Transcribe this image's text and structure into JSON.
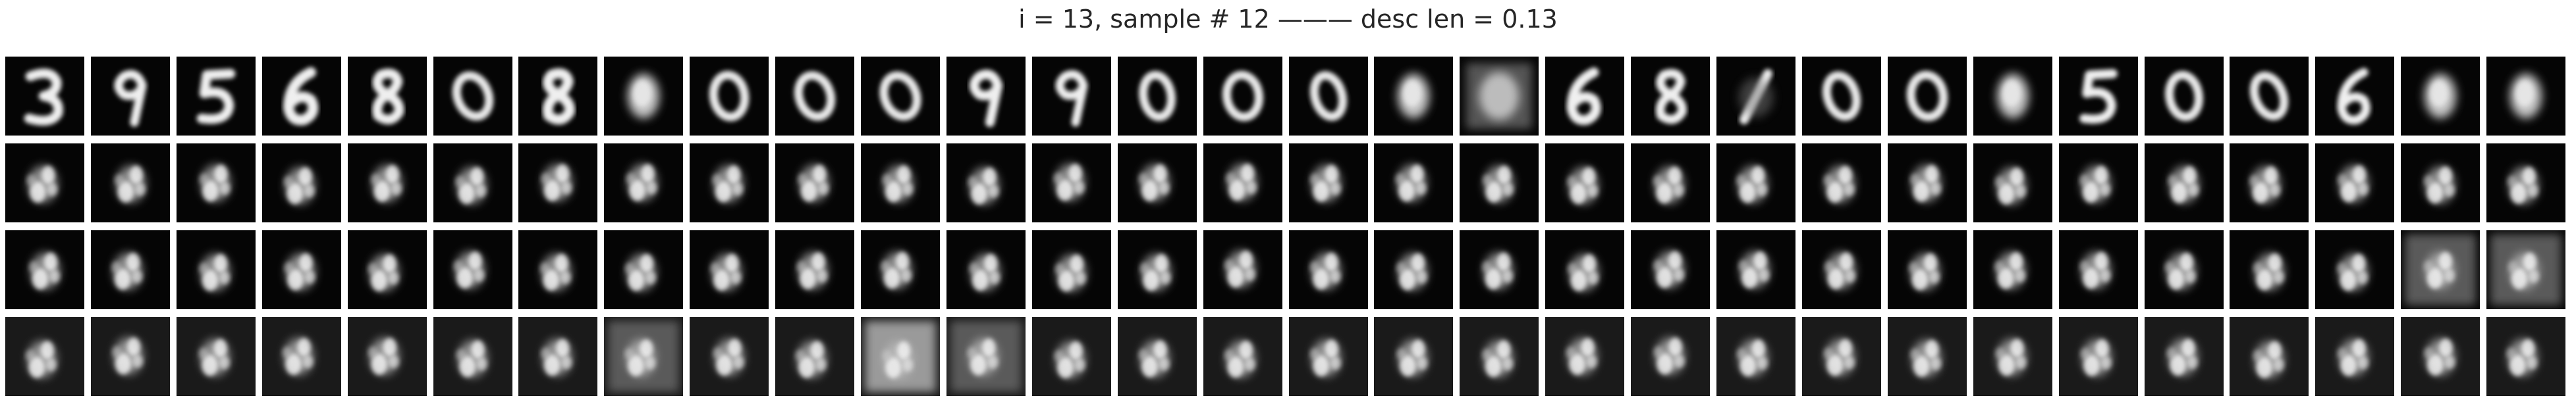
{
  "figure": {
    "title": "i = 13, sample # 12 ——— desc len = 0.13"
  },
  "grid": {
    "rows": 4,
    "cols": 30,
    "tile_background": "#050505",
    "gap_color": "#ffffff",
    "content": "grayscale reconstruction samples; row 1 shows digit-like shapes (3, 9, 5, 6, 8, 0), rows 2-4 progressively degrade to a blurry blob"
  }
}
